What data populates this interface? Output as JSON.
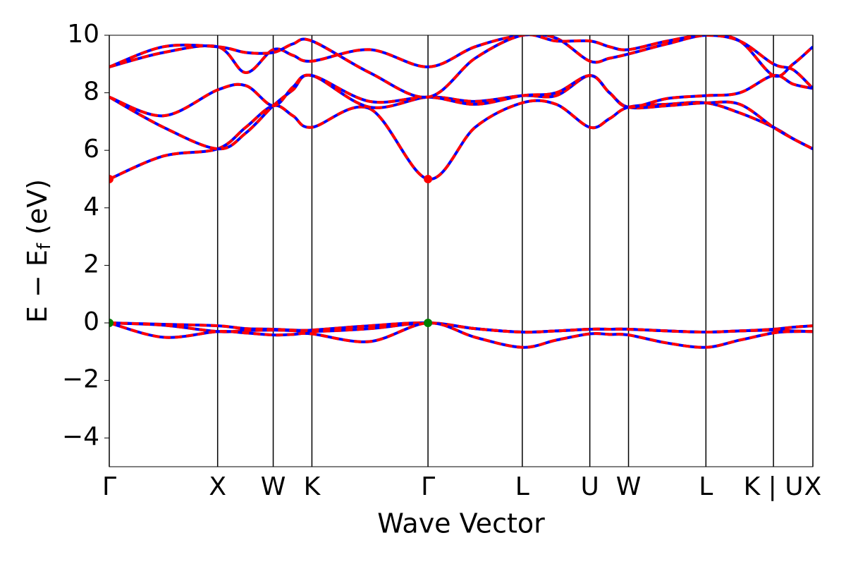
{
  "chart_data": {
    "type": "line",
    "xlabel": "Wave Vector",
    "ylabel": [
      "E − E",
      "f",
      " (eV)"
    ],
    "xlim": [
      0,
      1
    ],
    "ylim": [
      -5,
      10
    ],
    "xticks": [
      {
        "value": 0,
        "label": "Γ"
      },
      {
        "value": 0.154,
        "label": "X"
      },
      {
        "value": 0.233,
        "label": "W"
      },
      {
        "value": 0.288,
        "label": "K"
      },
      {
        "value": 0.453,
        "label": "Γ"
      },
      {
        "value": 0.587,
        "label": "L"
      },
      {
        "value": 0.683,
        "label": "U"
      },
      {
        "value": 0.738,
        "label": "W"
      },
      {
        "value": 0.848,
        "label": "L"
      },
      {
        "value": 0.944,
        "label": "K | U"
      },
      {
        "value": 1,
        "label": "X"
      }
    ],
    "yticks": [
      {
        "value": -4,
        "label": "−4"
      },
      {
        "value": -2,
        "label": "−2"
      },
      0,
      2,
      4,
      6,
      8,
      10
    ],
    "line_colors": [
      "#0000ff",
      "#ff0000"
    ],
    "x": [
      0,
      0.077,
      0.154,
      0.194,
      0.233,
      0.261,
      0.288,
      0.37,
      0.453,
      0.52,
      0.587,
      0.635,
      0.683,
      0.711,
      0.738,
      0.793,
      0.848,
      0.896,
      0.944,
      0.972,
      1
    ],
    "series": [
      {
        "values": [
          0,
          -0.05,
          -0.1,
          -0.2,
          -0.22,
          -0.25,
          -0.25,
          -0.1,
          0,
          -0.2,
          -0.32,
          -0.28,
          -0.22,
          -0.22,
          -0.22,
          -0.28,
          -0.32,
          -0.28,
          -0.22,
          -0.15,
          -0.1
        ]
      },
      {
        "values": [
          0,
          -0.08,
          -0.3,
          -0.27,
          -0.25,
          -0.27,
          -0.3,
          -0.2,
          0,
          -0.2,
          -0.32,
          -0.28,
          -0.22,
          -0.22,
          -0.22,
          -0.28,
          -0.32,
          -0.28,
          -0.25,
          -0.28,
          -0.3
        ]
      },
      {
        "values": [
          0,
          -0.5,
          -0.3,
          -0.35,
          -0.42,
          -0.4,
          -0.38,
          -0.65,
          0,
          -0.5,
          -0.85,
          -0.6,
          -0.38,
          -0.4,
          -0.42,
          -0.7,
          -0.85,
          -0.6,
          -0.35,
          -0.3,
          -0.3
        ]
      },
      {
        "values": [
          5,
          5.8,
          6.05,
          6.8,
          7.55,
          7.2,
          6.8,
          7.45,
          5,
          6.8,
          7.65,
          7.6,
          6.8,
          7.1,
          7.5,
          7.6,
          7.65,
          7.3,
          6.8,
          6.4,
          6.05
        ]
      },
      {
        "values": [
          7.85,
          6.8,
          6.05,
          6.6,
          7.55,
          8.1,
          8.6,
          7.5,
          7.85,
          7.7,
          7.9,
          7.9,
          8.6,
          8.0,
          7.5,
          7.55,
          7.65,
          7.6,
          6.8,
          6.4,
          6.05
        ]
      },
      {
        "values": [
          7.85,
          7.2,
          8.1,
          8.25,
          7.55,
          8.2,
          8.6,
          7.7,
          7.85,
          7.6,
          7.9,
          8.0,
          8.6,
          8.0,
          7.5,
          7.8,
          7.9,
          8.0,
          8.6,
          8.3,
          8.15
        ]
      },
      {
        "values": [
          8.9,
          9.4,
          9.6,
          8.7,
          9.5,
          9.3,
          9.1,
          9.5,
          8.9,
          9.6,
          10,
          9.9,
          9.1,
          9.2,
          9.35,
          9.7,
          10,
          9.8,
          8.6,
          9.0,
          9.6
        ]
      },
      {
        "values": [
          8.9,
          9.6,
          9.6,
          9.4,
          9.4,
          9.7,
          9.8,
          8.7,
          7.85,
          9.2,
          10,
          9.8,
          9.8,
          9.6,
          9.5,
          9.8,
          10,
          9.8,
          9.0,
          8.8,
          8.15
        ]
      }
    ],
    "markers": [
      {
        "x": 0,
        "y": 5,
        "color": "#ff0000"
      },
      {
        "x": 0.453,
        "y": 5,
        "color": "#ff0000"
      },
      {
        "x": 0,
        "y": 0,
        "color": "#008000"
      },
      {
        "x": 0.453,
        "y": 0,
        "color": "#008000"
      }
    ]
  }
}
